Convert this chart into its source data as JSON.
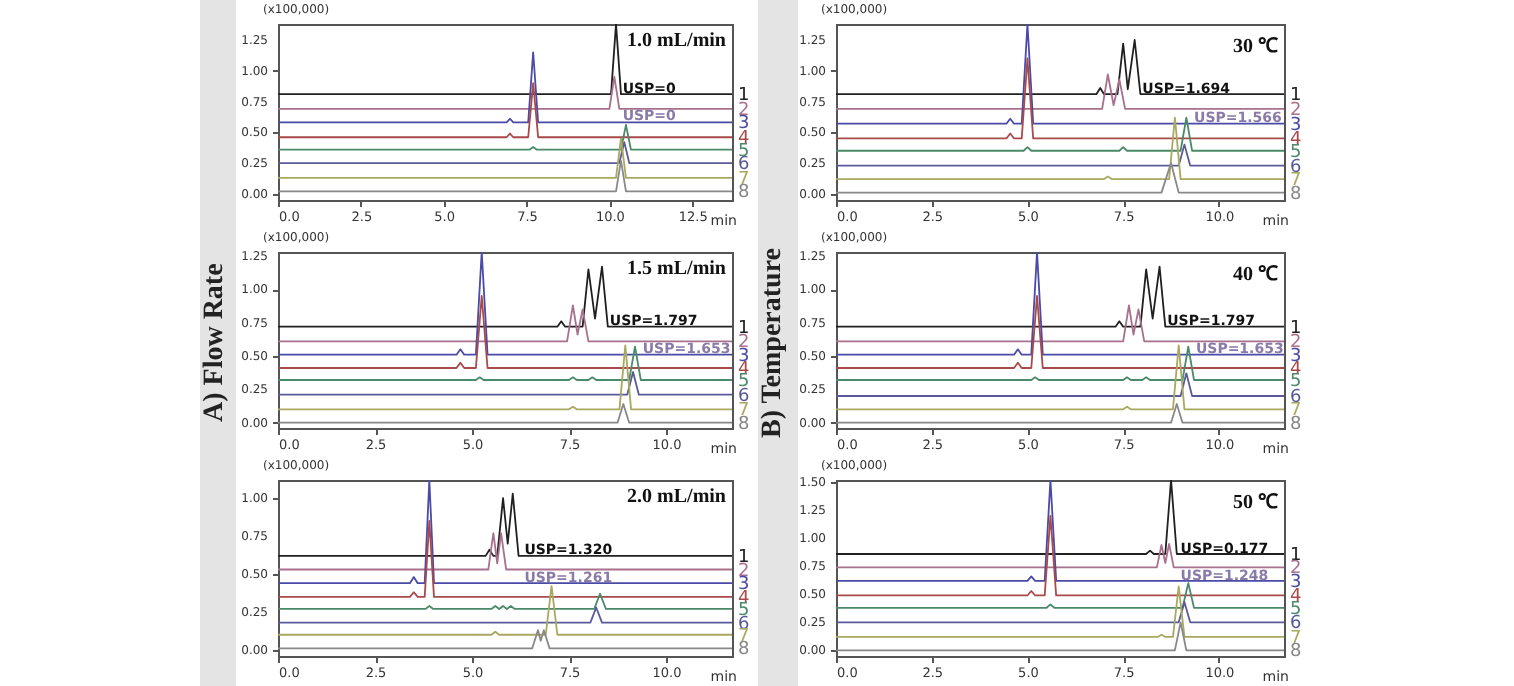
{
  "chart_data": [
    {
      "type": "line",
      "title": "1.0 mL/min",
      "xlabel": "min",
      "ylabel": "(x100,000)",
      "xlim": [
        0,
        13.7
      ],
      "ylim": [
        -0.05,
        1.38
      ],
      "xticks": [
        {
          "value": 0,
          "label": "0.0"
        },
        {
          "value": 2.5,
          "label": "2.5"
        },
        {
          "value": 5,
          "label": "5.0"
        },
        {
          "value": 7.5,
          "label": "7.5"
        },
        {
          "value": 10,
          "label": "10.0"
        },
        {
          "value": 12.5,
          "label": "12.5"
        }
      ],
      "yticks": [
        {
          "value": 0,
          "label": "0.00"
        },
        {
          "value": 0.25,
          "label": "0.25"
        },
        {
          "value": 0.5,
          "label": "0.50"
        },
        {
          "value": 0.75,
          "label": "0.75"
        },
        {
          "value": 1,
          "label": "1.00"
        },
        {
          "value": 1.25,
          "label": "1.25"
        }
      ],
      "annotations": [
        {
          "text": "USP=0",
          "x": 10.4,
          "y": 0.82
        },
        {
          "text": "USP=0",
          "x": 10.4,
          "y": 0.6
        }
      ],
      "series": [
        {
          "name": "1",
          "color": "#202020",
          "x": [
            0,
            10.05,
            10.2,
            10.35,
            13.7
          ],
          "values": [
            0.81,
            0.81,
            1.38,
            0.81,
            0.81
          ]
        },
        {
          "name": "2",
          "color": "#a8708c",
          "x": [
            0,
            10,
            10.15,
            10.3,
            13.7
          ],
          "values": [
            0.69,
            0.69,
            0.95,
            0.69,
            0.69
          ]
        },
        {
          "name": "3",
          "color": "#4a4aa8",
          "x": [
            0,
            6.9,
            7,
            7.1,
            7.55,
            7.7,
            7.85,
            13.7
          ],
          "values": [
            0.58,
            0.58,
            0.61,
            0.58,
            0.58,
            1.15,
            0.58,
            0.58
          ]
        },
        {
          "name": "4",
          "color": "#a84a4a",
          "x": [
            0,
            6.9,
            7,
            7.1,
            7.55,
            7.7,
            7.85,
            13.7
          ],
          "values": [
            0.46,
            0.46,
            0.49,
            0.46,
            0.46,
            0.9,
            0.46,
            0.46
          ]
        },
        {
          "name": "5",
          "color": "#4a8a6a",
          "x": [
            0,
            7.6,
            7.7,
            7.8,
            10.35,
            10.5,
            10.65,
            13.7
          ],
          "values": [
            0.36,
            0.36,
            0.38,
            0.36,
            0.36,
            0.56,
            0.36,
            0.36
          ]
        },
        {
          "name": "6",
          "color": "#5a5a98",
          "x": [
            0,
            10.3,
            10.45,
            10.6,
            13.7
          ],
          "values": [
            0.25,
            0.25,
            0.42,
            0.25,
            0.25
          ]
        },
        {
          "name": "7",
          "color": "#a8a860",
          "x": [
            0,
            10.2,
            10.35,
            10.5,
            13.7
          ],
          "values": [
            0.13,
            0.13,
            0.45,
            0.13,
            0.13
          ]
        },
        {
          "name": "8",
          "color": "#888888",
          "x": [
            0,
            10.2,
            10.35,
            10.5,
            13.7
          ],
          "values": [
            0.02,
            0.02,
            0.27,
            0.02,
            0.02
          ]
        }
      ]
    },
    {
      "type": "line",
      "title": "30 ℃",
      "xlabel": "min",
      "ylabel": "(x100,000)",
      "xlim": [
        0,
        11.7
      ],
      "ylim": [
        -0.05,
        1.38
      ],
      "xticks": [
        {
          "value": 0,
          "label": "0.0"
        },
        {
          "value": 2.5,
          "label": "2.5"
        },
        {
          "value": 5,
          "label": "5.0"
        },
        {
          "value": 7.5,
          "label": "7.5"
        },
        {
          "value": 10,
          "label": "10.0"
        }
      ],
      "yticks": [
        {
          "value": 0,
          "label": "0.00"
        },
        {
          "value": 0.25,
          "label": "0.25"
        },
        {
          "value": 0.5,
          "label": "0.50"
        },
        {
          "value": 0.75,
          "label": "0.75"
        },
        {
          "value": 1,
          "label": "1.00"
        },
        {
          "value": 1.25,
          "label": "1.25"
        }
      ],
      "annotations": [
        {
          "text": "USP=1.694",
          "x": 8.0,
          "y": 0.82
        },
        {
          "text": "USP=1.566",
          "x": 9.35,
          "y": 0.58
        }
      ],
      "series": [
        {
          "name": "1",
          "color": "#202020",
          "x": [
            0,
            6.8,
            6.9,
            7,
            7.35,
            7.5,
            7.62,
            7.8,
            7.95,
            11.7
          ],
          "values": [
            0.81,
            0.81,
            0.86,
            0.81,
            0.81,
            1.22,
            0.85,
            1.25,
            0.81,
            0.81
          ]
        },
        {
          "name": "2",
          "color": "#a8708c",
          "x": [
            0,
            6.95,
            7.1,
            7.25,
            7.4,
            7.55,
            11.7
          ],
          "values": [
            0.69,
            0.69,
            0.97,
            0.72,
            0.93,
            0.69,
            0.69
          ]
        },
        {
          "name": "3",
          "color": "#4a4aa8",
          "x": [
            0,
            4.45,
            4.55,
            4.65,
            4.85,
            5,
            5.15,
            11.7
          ],
          "values": [
            0.57,
            0.57,
            0.61,
            0.57,
            0.57,
            1.38,
            0.57,
            0.57
          ]
        },
        {
          "name": "4",
          "color": "#a84a4a",
          "x": [
            0,
            4.45,
            4.55,
            4.65,
            4.85,
            5,
            5.15,
            11.7
          ],
          "values": [
            0.45,
            0.45,
            0.49,
            0.45,
            0.45,
            1.1,
            0.45,
            0.45
          ]
        },
        {
          "name": "5",
          "color": "#4a8a6a",
          "x": [
            0,
            4.9,
            5,
            5.1,
            7.4,
            7.5,
            7.6,
            9,
            9.15,
            9.3,
            11.7
          ],
          "values": [
            0.35,
            0.35,
            0.38,
            0.35,
            0.35,
            0.38,
            0.35,
            0.35,
            0.62,
            0.35,
            0.35
          ]
        },
        {
          "name": "6",
          "color": "#5a5a98",
          "x": [
            0,
            8.95,
            9.1,
            9.25,
            11.7
          ],
          "values": [
            0.23,
            0.23,
            0.4,
            0.23,
            0.23
          ]
        },
        {
          "name": "7",
          "color": "#a8a860",
          "x": [
            0,
            7,
            7.1,
            7.2,
            8.7,
            8.85,
            9,
            11.7
          ],
          "values": [
            0.12,
            0.12,
            0.14,
            0.12,
            0.12,
            0.62,
            0.12,
            0.12
          ]
        },
        {
          "name": "8",
          "color": "#888888",
          "x": [
            0,
            8.5,
            8.75,
            8.95,
            11.7
          ],
          "values": [
            0.01,
            0.01,
            0.25,
            0.01,
            0.01
          ]
        }
      ]
    },
    {
      "type": "line",
      "title": "1.5 mL/min",
      "xlabel": "min",
      "ylabel": "(x100,000)",
      "xlim": [
        0,
        11.7
      ],
      "ylim": [
        -0.04,
        1.28
      ],
      "xticks": [
        {
          "value": 0,
          "label": "0.0"
        },
        {
          "value": 2.5,
          "label": "2.5"
        },
        {
          "value": 5,
          "label": "5.0"
        },
        {
          "value": 7.5,
          "label": "7.5"
        },
        {
          "value": 10,
          "label": "10.0"
        }
      ],
      "yticks": [
        {
          "value": 0,
          "label": "0.00"
        },
        {
          "value": 0.25,
          "label": "0.25"
        },
        {
          "value": 0.5,
          "label": "0.50"
        },
        {
          "value": 0.75,
          "label": "0.75"
        },
        {
          "value": 1,
          "label": "1.00"
        },
        {
          "value": 1.25,
          "label": "1.25"
        }
      ],
      "annotations": [
        "A) Flow Rate",
        {
          "text": "USP=1.797",
          "x": 8.55,
          "y": 0.73
        },
        {
          "text": "USP=1.653",
          "x": 9.4,
          "y": 0.52
        }
      ],
      "series": [
        {
          "name": "1",
          "color": "#202020",
          "x": [
            0,
            7.2,
            7.3,
            7.4,
            7.85,
            8,
            8.17,
            8.35,
            8.5,
            11.7
          ],
          "values": [
            0.72,
            0.72,
            0.76,
            0.72,
            0.72,
            1.15,
            0.78,
            1.17,
            0.72,
            0.72
          ]
        },
        {
          "name": "2",
          "color": "#a8708c",
          "x": [
            0,
            7.45,
            7.6,
            7.72,
            7.85,
            8,
            11.7
          ],
          "values": [
            0.61,
            0.61,
            0.88,
            0.66,
            0.85,
            0.61,
            0.61
          ]
        },
        {
          "name": "3",
          "color": "#4a4aa8",
          "x": [
            0,
            4.6,
            4.7,
            4.8,
            5.1,
            5.25,
            5.4,
            11.7
          ],
          "values": [
            0.51,
            0.51,
            0.55,
            0.51,
            0.51,
            1.28,
            0.51,
            0.51
          ]
        },
        {
          "name": "4",
          "color": "#a84a4a",
          "x": [
            0,
            4.6,
            4.7,
            4.8,
            5.1,
            5.25,
            5.4,
            11.7
          ],
          "values": [
            0.41,
            0.41,
            0.45,
            0.41,
            0.41,
            0.95,
            0.41,
            0.41
          ]
        },
        {
          "name": "5",
          "color": "#4a8a6a",
          "x": [
            0,
            5.1,
            5.2,
            5.3,
            7.5,
            7.6,
            7.7,
            8,
            8.1,
            8.2,
            9.05,
            9.2,
            9.35,
            11.7
          ],
          "values": [
            0.32,
            0.32,
            0.34,
            0.32,
            0.32,
            0.34,
            0.32,
            0.32,
            0.34,
            0.32,
            0.32,
            0.57,
            0.32,
            0.32
          ]
        },
        {
          "name": "6",
          "color": "#5a5a98",
          "x": [
            0,
            9,
            9.15,
            9.3,
            11.7
          ],
          "values": [
            0.21,
            0.21,
            0.38,
            0.21,
            0.21
          ]
        },
        {
          "name": "7",
          "color": "#a8a860",
          "x": [
            0,
            7.5,
            7.6,
            7.7,
            8.8,
            8.95,
            9.1,
            11.7
          ],
          "values": [
            0.1,
            0.1,
            0.12,
            0.1,
            0.1,
            0.58,
            0.1,
            0.1
          ]
        },
        {
          "name": "8",
          "color": "#888888",
          "x": [
            0,
            8.75,
            8.9,
            9.05,
            11.7
          ],
          "values": [
            0,
            0,
            0.14,
            0,
            0
          ]
        }
      ]
    },
    {
      "type": "line",
      "title": "40 ℃",
      "xlabel": "min",
      "ylabel": "(x100,000)",
      "xlim": [
        0,
        11.7
      ],
      "ylim": [
        -0.04,
        1.28
      ],
      "xticks": [
        {
          "value": 0,
          "label": "0.0"
        },
        {
          "value": 2.5,
          "label": "2.5"
        },
        {
          "value": 5,
          "label": "5.0"
        },
        {
          "value": 7.5,
          "label": "7.5"
        },
        {
          "value": 10,
          "label": "10.0"
        }
      ],
      "yticks": [
        {
          "value": 0,
          "label": "0.00"
        },
        {
          "value": 0.25,
          "label": "0.25"
        },
        {
          "value": 0.5,
          "label": "0.50"
        },
        {
          "value": 0.75,
          "label": "0.75"
        },
        {
          "value": 1,
          "label": "1.00"
        },
        {
          "value": 1.25,
          "label": "1.25"
        }
      ],
      "annotations": [
        "B) Temperature",
        {
          "text": "USP=1.797",
          "x": 8.65,
          "y": 0.73
        },
        {
          "text": "USP=1.653",
          "x": 9.4,
          "y": 0.52
        }
      ],
      "series": [
        {
          "name": "1",
          "color": "#202020",
          "x": [
            0,
            7.3,
            7.4,
            7.5,
            7.95,
            8.1,
            8.27,
            8.45,
            8.6,
            11.7
          ],
          "values": [
            0.72,
            0.72,
            0.76,
            0.72,
            0.72,
            1.15,
            0.78,
            1.17,
            0.72,
            0.72
          ]
        },
        {
          "name": "2",
          "color": "#a8708c",
          "x": [
            0,
            7.5,
            7.65,
            7.77,
            7.9,
            8.05,
            11.7
          ],
          "values": [
            0.61,
            0.61,
            0.88,
            0.66,
            0.85,
            0.61,
            0.61
          ]
        },
        {
          "name": "3",
          "color": "#4a4aa8",
          "x": [
            0,
            4.65,
            4.75,
            4.85,
            5.1,
            5.25,
            5.4,
            11.7
          ],
          "values": [
            0.51,
            0.51,
            0.55,
            0.51,
            0.51,
            1.28,
            0.51,
            0.51
          ]
        },
        {
          "name": "4",
          "color": "#a84a4a",
          "x": [
            0,
            4.65,
            4.75,
            4.85,
            5.1,
            5.25,
            5.4,
            11.7
          ],
          "values": [
            0.41,
            0.41,
            0.45,
            0.41,
            0.41,
            0.95,
            0.41,
            0.41
          ]
        },
        {
          "name": "5",
          "color": "#4a8a6a",
          "x": [
            0,
            5.1,
            5.2,
            5.3,
            7.5,
            7.6,
            7.7,
            8,
            8.1,
            8.2,
            9.05,
            9.2,
            9.35,
            11.7
          ],
          "values": [
            0.32,
            0.32,
            0.34,
            0.32,
            0.32,
            0.34,
            0.32,
            0.32,
            0.34,
            0.32,
            0.32,
            0.57,
            0.32,
            0.32
          ]
        },
        {
          "name": "6",
          "color": "#5a5a98",
          "x": [
            0,
            9,
            9.15,
            9.3,
            11.7
          ],
          "values": [
            0.2,
            0.2,
            0.37,
            0.2,
            0.2
          ]
        },
        {
          "name": "7",
          "color": "#a8a860",
          "x": [
            0,
            7.5,
            7.6,
            7.7,
            8.8,
            8.95,
            9.1,
            11.7
          ],
          "values": [
            0.1,
            0.1,
            0.12,
            0.1,
            0.1,
            0.58,
            0.1,
            0.1
          ]
        },
        {
          "name": "8",
          "color": "#888888",
          "x": [
            0,
            8.75,
            8.9,
            9.05,
            11.7
          ],
          "values": [
            0,
            0,
            0.14,
            0,
            0
          ]
        }
      ]
    },
    {
      "type": "line",
      "title": "2.0 mL/min",
      "xlabel": "min",
      "ylabel": "(x100,000)",
      "xlim": [
        0,
        11.7
      ],
      "ylim": [
        -0.04,
        1.12
      ],
      "xticks": [
        {
          "value": 0,
          "label": "0.0"
        },
        {
          "value": 2.5,
          "label": "2.5"
        },
        {
          "value": 5,
          "label": "5.0"
        },
        {
          "value": 7.5,
          "label": "7.5"
        },
        {
          "value": 10,
          "label": "10.0"
        }
      ],
      "yticks": [
        {
          "value": 0,
          "label": "0.00"
        },
        {
          "value": 0.25,
          "label": "0.25"
        },
        {
          "value": 0.5,
          "label": "0.50"
        },
        {
          "value": 0.75,
          "label": "0.75"
        },
        {
          "value": 1,
          "label": "1.00"
        }
      ],
      "annotations": [
        {
          "text": "USP=1.320",
          "x": 6.35,
          "y": 0.63
        },
        {
          "text": "USP=1.261",
          "x": 6.35,
          "y": 0.45
        }
      ],
      "series": [
        {
          "name": "1",
          "color": "#202020",
          "x": [
            0,
            5.35,
            5.45,
            5.55,
            5.65,
            5.8,
            5.92,
            6.05,
            6.2,
            11.7
          ],
          "values": [
            0.62,
            0.62,
            0.66,
            0.62,
            0.62,
            1,
            0.7,
            1.03,
            0.62,
            0.62
          ]
        },
        {
          "name": "2",
          "color": "#a8708c",
          "x": [
            0,
            5.42,
            5.55,
            5.65,
            5.75,
            5.88,
            11.7
          ],
          "values": [
            0.53,
            0.53,
            0.77,
            0.57,
            0.77,
            0.53,
            0.53
          ]
        },
        {
          "name": "3",
          "color": "#4a4aa8",
          "x": [
            0,
            3.4,
            3.5,
            3.6,
            3.78,
            3.9,
            4.02,
            11.7
          ],
          "values": [
            0.44,
            0.44,
            0.48,
            0.44,
            0.44,
            1.12,
            0.44,
            0.44
          ]
        },
        {
          "name": "4",
          "color": "#a84a4a",
          "x": [
            0,
            3.4,
            3.5,
            3.6,
            3.78,
            3.9,
            4.02,
            11.7
          ],
          "values": [
            0.35,
            0.35,
            0.38,
            0.35,
            0.35,
            0.85,
            0.35,
            0.35
          ]
        },
        {
          "name": "5",
          "color": "#4a8a6a",
          "x": [
            0,
            3.8,
            3.9,
            4,
            5.5,
            5.6,
            5.7,
            5.8,
            5.9,
            6,
            6.1,
            8.15,
            8.3,
            8.45,
            11.7
          ],
          "values": [
            0.27,
            0.27,
            0.29,
            0.27,
            0.27,
            0.29,
            0.27,
            0.29,
            0.27,
            0.29,
            0.27,
            0.27,
            0.37,
            0.27,
            0.27
          ]
        },
        {
          "name": "6",
          "color": "#5a5a98",
          "x": [
            0,
            8.05,
            8.2,
            8.35,
            11.7
          ],
          "values": [
            0.18,
            0.18,
            0.28,
            0.18,
            0.18
          ]
        },
        {
          "name": "7",
          "color": "#a8a860",
          "x": [
            0,
            5.5,
            5.6,
            5.7,
            6.9,
            7.05,
            7.2,
            11.7
          ],
          "values": [
            0.1,
            0.1,
            0.12,
            0.1,
            0.1,
            0.42,
            0.1,
            0.1
          ]
        },
        {
          "name": "8",
          "color": "#888888",
          "x": [
            0,
            6.55,
            6.7,
            6.77,
            6.85,
            7,
            11.7
          ],
          "values": [
            0.01,
            0.01,
            0.13,
            0.06,
            0.13,
            0.01,
            0.01
          ]
        }
      ]
    },
    {
      "type": "line",
      "title": "50 ℃",
      "xlabel": "min",
      "ylabel": "(x100,000)",
      "xlim": [
        0,
        11.7
      ],
      "ylim": [
        -0.05,
        1.52
      ],
      "xticks": [
        {
          "value": 0,
          "label": "0.0"
        },
        {
          "value": 2.5,
          "label": "2.5"
        },
        {
          "value": 5,
          "label": "5.0"
        },
        {
          "value": 7.5,
          "label": "7.5"
        },
        {
          "value": 10,
          "label": "10.0"
        }
      ],
      "yticks": [
        {
          "value": 0,
          "label": "0.00"
        },
        {
          "value": 0.25,
          "label": "0.25"
        },
        {
          "value": 0.5,
          "label": "0.50"
        },
        {
          "value": 0.75,
          "label": "0.75"
        },
        {
          "value": 1,
          "label": "1.00"
        },
        {
          "value": 1.25,
          "label": "1.25"
        },
        {
          "value": 1.5,
          "label": "1.50"
        }
      ],
      "annotations": [
        {
          "text": "USP=0.177",
          "x": 9.0,
          "y": 0.87
        },
        {
          "text": "USP=1.248",
          "x": 9.0,
          "y": 0.63
        }
      ],
      "series": [
        {
          "name": "1",
          "color": "#202020",
          "x": [
            0,
            8.1,
            8.2,
            8.3,
            8.6,
            8.75,
            8.9,
            11.7
          ],
          "values": [
            0.86,
            0.86,
            0.89,
            0.86,
            0.86,
            1.52,
            0.86,
            0.86
          ]
        },
        {
          "name": "2",
          "color": "#a8708c",
          "x": [
            0,
            8.38,
            8.5,
            8.6,
            8.7,
            8.82,
            11.7
          ],
          "values": [
            0.74,
            0.74,
            0.94,
            0.78,
            0.95,
            0.74,
            0.74
          ]
        },
        {
          "name": "3",
          "color": "#4a4aa8",
          "x": [
            0,
            5,
            5.1,
            5.2,
            5.45,
            5.6,
            5.75,
            11.7
          ],
          "values": [
            0.62,
            0.62,
            0.66,
            0.62,
            0.62,
            1.52,
            0.62,
            0.62
          ]
        },
        {
          "name": "4",
          "color": "#a84a4a",
          "x": [
            0,
            5,
            5.1,
            5.2,
            5.45,
            5.6,
            5.75,
            11.7
          ],
          "values": [
            0.49,
            0.49,
            0.53,
            0.49,
            0.49,
            1.2,
            0.49,
            0.49
          ]
        },
        {
          "name": "5",
          "color": "#4a8a6a",
          "x": [
            0,
            5.5,
            5.6,
            5.7,
            9.05,
            9.2,
            9.35,
            11.7
          ],
          "values": [
            0.38,
            0.38,
            0.41,
            0.38,
            0.38,
            0.6,
            0.38,
            0.38
          ]
        },
        {
          "name": "6",
          "color": "#5a5a98",
          "x": [
            0,
            8.95,
            9.1,
            9.25,
            11.7
          ],
          "values": [
            0.25,
            0.25,
            0.43,
            0.25,
            0.25
          ]
        },
        {
          "name": "7",
          "color": "#a8a860",
          "x": [
            0,
            8.4,
            8.5,
            8.6,
            8.8,
            8.95,
            9.1,
            11.7
          ],
          "values": [
            0.12,
            0.12,
            0.14,
            0.12,
            0.12,
            0.57,
            0.12,
            0.12
          ]
        },
        {
          "name": "8",
          "color": "#888888",
          "x": [
            0,
            8.85,
            9,
            9.15,
            11.7
          ],
          "values": [
            0,
            0,
            0.25,
            0,
            0
          ]
        }
      ]
    }
  ]
}
